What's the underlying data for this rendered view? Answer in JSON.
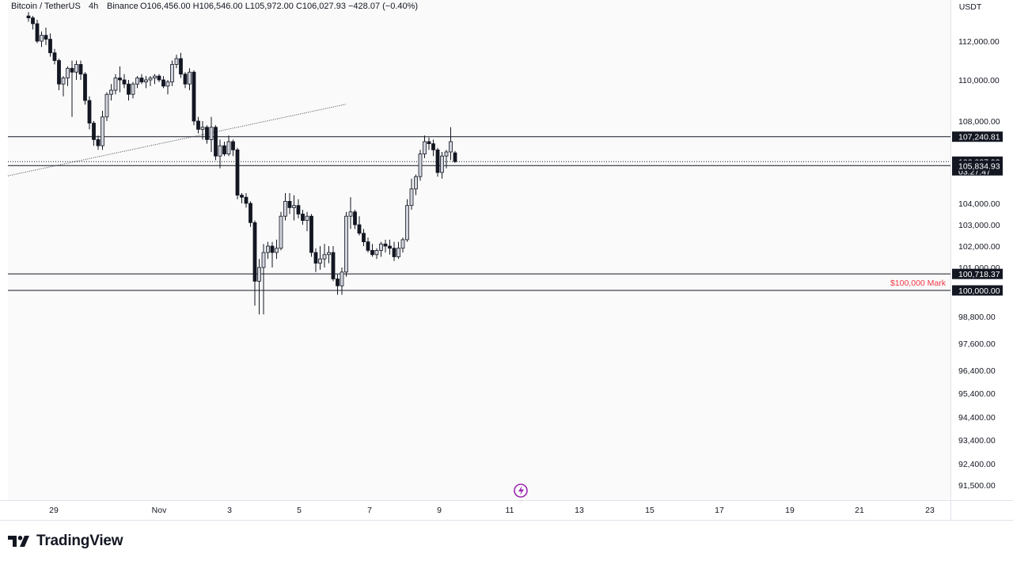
{
  "legend": {
    "symbol": "Bitcoin / TetherUS",
    "interval": "4h",
    "exchange": "Binance",
    "ohlc": "O106,456.00  H106,546.00  L105,972.00  C106,027.93  −428.07 (−0.40%)"
  },
  "currency_label": "USDT",
  "annotation_label": "$100,000 Mark",
  "brand": "TradingView",
  "colors": {
    "up": "#d1d4dc",
    "down": "#131722",
    "mark": "#f23645",
    "grid": "#e0e3eb"
  },
  "chart_data": {
    "type": "candlestick",
    "title": "",
    "price_axis_ticks": [
      112000,
      110000,
      108000,
      104000,
      103000,
      102000,
      101000,
      98800,
      97600,
      96400,
      95400,
      94400,
      93400,
      92400,
      91500
    ],
    "time_axis_ticks": [
      "29",
      "Nov",
      "3",
      "5",
      "7",
      "9",
      "11",
      "13",
      "15",
      "17",
      "19",
      "21",
      "23"
    ],
    "candles": [
      {
        "o": 113300,
        "h": 113500,
        "l": 113000,
        "c": 113200
      },
      {
        "o": 113200,
        "h": 113300,
        "l": 112600,
        "c": 112900
      },
      {
        "o": 112900,
        "h": 113100,
        "l": 111900,
        "c": 112000
      },
      {
        "o": 112000,
        "h": 112500,
        "l": 111700,
        "c": 112300
      },
      {
        "o": 112300,
        "h": 112700,
        "l": 111800,
        "c": 112100
      },
      {
        "o": 112100,
        "h": 112400,
        "l": 111200,
        "c": 111400
      },
      {
        "o": 111400,
        "h": 111600,
        "l": 110800,
        "c": 111000
      },
      {
        "o": 111000,
        "h": 111100,
        "l": 109500,
        "c": 109800
      },
      {
        "o": 109800,
        "h": 110200,
        "l": 109200,
        "c": 110100
      },
      {
        "o": 110100,
        "h": 110700,
        "l": 109700,
        "c": 110600
      },
      {
        "o": 110600,
        "h": 111000,
        "l": 108200,
        "c": 110400
      },
      {
        "o": 110400,
        "h": 111000,
        "l": 110000,
        "c": 110800
      },
      {
        "o": 110800,
        "h": 111000,
        "l": 110000,
        "c": 110300
      },
      {
        "o": 110300,
        "h": 110400,
        "l": 108800,
        "c": 109000
      },
      {
        "o": 109000,
        "h": 109200,
        "l": 107600,
        "c": 107900
      },
      {
        "o": 107900,
        "h": 108000,
        "l": 106800,
        "c": 107100
      },
      {
        "o": 107100,
        "h": 107300,
        "l": 106600,
        "c": 106800
      },
      {
        "o": 106800,
        "h": 108500,
        "l": 106600,
        "c": 108200
      },
      {
        "o": 108200,
        "h": 109400,
        "l": 108000,
        "c": 109300
      },
      {
        "o": 109300,
        "h": 109800,
        "l": 109000,
        "c": 109500
      },
      {
        "o": 109500,
        "h": 110300,
        "l": 109300,
        "c": 110100
      },
      {
        "o": 110100,
        "h": 110700,
        "l": 109400,
        "c": 110000
      },
      {
        "o": 110000,
        "h": 110300,
        "l": 109600,
        "c": 109800
      },
      {
        "o": 109800,
        "h": 110000,
        "l": 109000,
        "c": 109300
      },
      {
        "o": 109300,
        "h": 109900,
        "l": 109100,
        "c": 109800
      },
      {
        "o": 109800,
        "h": 110200,
        "l": 109600,
        "c": 110100
      },
      {
        "o": 110100,
        "h": 110300,
        "l": 109800,
        "c": 109900
      },
      {
        "o": 109900,
        "h": 110200,
        "l": 109600,
        "c": 110000
      },
      {
        "o": 110000,
        "h": 110200,
        "l": 109700,
        "c": 110100
      },
      {
        "o": 110100,
        "h": 110300,
        "l": 109800,
        "c": 110200
      },
      {
        "o": 110200,
        "h": 110300,
        "l": 109900,
        "c": 110000
      },
      {
        "o": 110000,
        "h": 110200,
        "l": 109600,
        "c": 109700
      },
      {
        "o": 109700,
        "h": 110000,
        "l": 109300,
        "c": 109900
      },
      {
        "o": 109900,
        "h": 111000,
        "l": 109700,
        "c": 110800
      },
      {
        "o": 110800,
        "h": 111300,
        "l": 110600,
        "c": 111100
      },
      {
        "o": 111100,
        "h": 111400,
        "l": 110100,
        "c": 110300
      },
      {
        "o": 110300,
        "h": 110400,
        "l": 109600,
        "c": 109800
      },
      {
        "o": 109800,
        "h": 110600,
        "l": 109500,
        "c": 110400
      },
      {
        "o": 110400,
        "h": 110500,
        "l": 107800,
        "c": 108000
      },
      {
        "o": 108000,
        "h": 108200,
        "l": 107400,
        "c": 107600
      },
      {
        "o": 107600,
        "h": 108000,
        "l": 107100,
        "c": 107700
      },
      {
        "o": 107700,
        "h": 107800,
        "l": 106900,
        "c": 107100
      },
      {
        "o": 107100,
        "h": 108200,
        "l": 106500,
        "c": 107700
      },
      {
        "o": 107700,
        "h": 107800,
        "l": 106100,
        "c": 106300
      },
      {
        "o": 106300,
        "h": 107100,
        "l": 105700,
        "c": 106800
      },
      {
        "o": 106800,
        "h": 107000,
        "l": 106300,
        "c": 106400
      },
      {
        "o": 106400,
        "h": 107300,
        "l": 106300,
        "c": 107000
      },
      {
        "o": 107000,
        "h": 107100,
        "l": 106300,
        "c": 106600
      },
      {
        "o": 106600,
        "h": 106700,
        "l": 104200,
        "c": 104400
      },
      {
        "o": 104400,
        "h": 104500,
        "l": 104000,
        "c": 104300
      },
      {
        "o": 104300,
        "h": 104500,
        "l": 103800,
        "c": 104000
      },
      {
        "o": 104000,
        "h": 104100,
        "l": 102900,
        "c": 103100
      },
      {
        "o": 103100,
        "h": 103200,
        "l": 99300,
        "c": 100400
      },
      {
        "o": 100400,
        "h": 101400,
        "l": 98900,
        "c": 101000
      },
      {
        "o": 101000,
        "h": 102100,
        "l": 98900,
        "c": 101700
      },
      {
        "o": 101700,
        "h": 102200,
        "l": 101400,
        "c": 102000
      },
      {
        "o": 102000,
        "h": 102200,
        "l": 101000,
        "c": 101700
      },
      {
        "o": 101700,
        "h": 102300,
        "l": 101400,
        "c": 101900
      },
      {
        "o": 101900,
        "h": 103600,
        "l": 101800,
        "c": 103400
      },
      {
        "o": 103400,
        "h": 104500,
        "l": 103200,
        "c": 104100
      },
      {
        "o": 104100,
        "h": 104500,
        "l": 103500,
        "c": 103800
      },
      {
        "o": 103800,
        "h": 104400,
        "l": 103200,
        "c": 103900
      },
      {
        "o": 103900,
        "h": 104200,
        "l": 103300,
        "c": 103500
      },
      {
        "o": 103500,
        "h": 103700,
        "l": 103000,
        "c": 103200
      },
      {
        "o": 103200,
        "h": 103600,
        "l": 102700,
        "c": 103400
      },
      {
        "o": 103400,
        "h": 103500,
        "l": 101500,
        "c": 101700
      },
      {
        "o": 101700,
        "h": 101900,
        "l": 100800,
        "c": 101200
      },
      {
        "o": 101200,
        "h": 102000,
        "l": 100900,
        "c": 101400
      },
      {
        "o": 101400,
        "h": 102100,
        "l": 101000,
        "c": 101600
      },
      {
        "o": 101600,
        "h": 102000,
        "l": 101200,
        "c": 101700
      },
      {
        "o": 101700,
        "h": 102000,
        "l": 100400,
        "c": 100500
      },
      {
        "o": 100500,
        "h": 100700,
        "l": 99800,
        "c": 100200
      },
      {
        "o": 100200,
        "h": 101000,
        "l": 99800,
        "c": 100800
      },
      {
        "o": 100800,
        "h": 103600,
        "l": 100600,
        "c": 103400
      },
      {
        "o": 103400,
        "h": 104300,
        "l": 102800,
        "c": 103600
      },
      {
        "o": 103600,
        "h": 103700,
        "l": 102800,
        "c": 103000
      },
      {
        "o": 103000,
        "h": 103400,
        "l": 102500,
        "c": 102600
      },
      {
        "o": 102600,
        "h": 102800,
        "l": 102000,
        "c": 102200
      },
      {
        "o": 102200,
        "h": 102400,
        "l": 101700,
        "c": 101800
      },
      {
        "o": 101800,
        "h": 102100,
        "l": 101500,
        "c": 101600
      },
      {
        "o": 101600,
        "h": 101900,
        "l": 101400,
        "c": 101800
      },
      {
        "o": 101800,
        "h": 102200,
        "l": 101500,
        "c": 102100
      },
      {
        "o": 102100,
        "h": 102300,
        "l": 101700,
        "c": 102000
      },
      {
        "o": 102000,
        "h": 102300,
        "l": 101600,
        "c": 101900
      },
      {
        "o": 101900,
        "h": 102200,
        "l": 101300,
        "c": 101500
      },
      {
        "o": 101500,
        "h": 102200,
        "l": 101400,
        "c": 101900
      },
      {
        "o": 101900,
        "h": 102400,
        "l": 101700,
        "c": 102300
      },
      {
        "o": 102300,
        "h": 104200,
        "l": 102200,
        "c": 103900
      },
      {
        "o": 103900,
        "h": 105200,
        "l": 103700,
        "c": 104700
      },
      {
        "o": 104700,
        "h": 105400,
        "l": 104400,
        "c": 105300
      },
      {
        "o": 105300,
        "h": 106600,
        "l": 105100,
        "c": 106400
      },
      {
        "o": 106400,
        "h": 107300,
        "l": 106200,
        "c": 107000
      },
      {
        "o": 107000,
        "h": 107200,
        "l": 106600,
        "c": 106900
      },
      {
        "o": 106900,
        "h": 107100,
        "l": 106300,
        "c": 106600
      },
      {
        "o": 106600,
        "h": 106700,
        "l": 105300,
        "c": 105500
      },
      {
        "o": 105500,
        "h": 106500,
        "l": 105200,
        "c": 106300
      },
      {
        "o": 106300,
        "h": 106600,
        "l": 105700,
        "c": 106500
      },
      {
        "o": 106500,
        "h": 107700,
        "l": 106100,
        "c": 107000
      },
      {
        "o": 106456,
        "h": 106546,
        "l": 105972,
        "c": 106027.93
      }
    ],
    "horizontal_lines": [
      107240.81,
      105834.93,
      100718.37,
      100000.0
    ],
    "trend_line": {
      "from": {
        "bar": 0,
        "price": 105550
      },
      "to": {
        "bar": 48,
        "price": 107700
      }
    },
    "price_tags": [
      {
        "price": 107240.81,
        "text": "107,240.81"
      },
      {
        "price": 106027.93,
        "text": "106,027.93",
        "sub": "03:27:47"
      },
      {
        "price": 105834.93,
        "text": "105,834.93"
      },
      {
        "price": 100718.37,
        "text": "100,718.37"
      },
      {
        "price": 100000.0,
        "text": "100,000.00"
      }
    ],
    "annotation": {
      "text_key": "annotation_label",
      "price": 100000
    }
  }
}
